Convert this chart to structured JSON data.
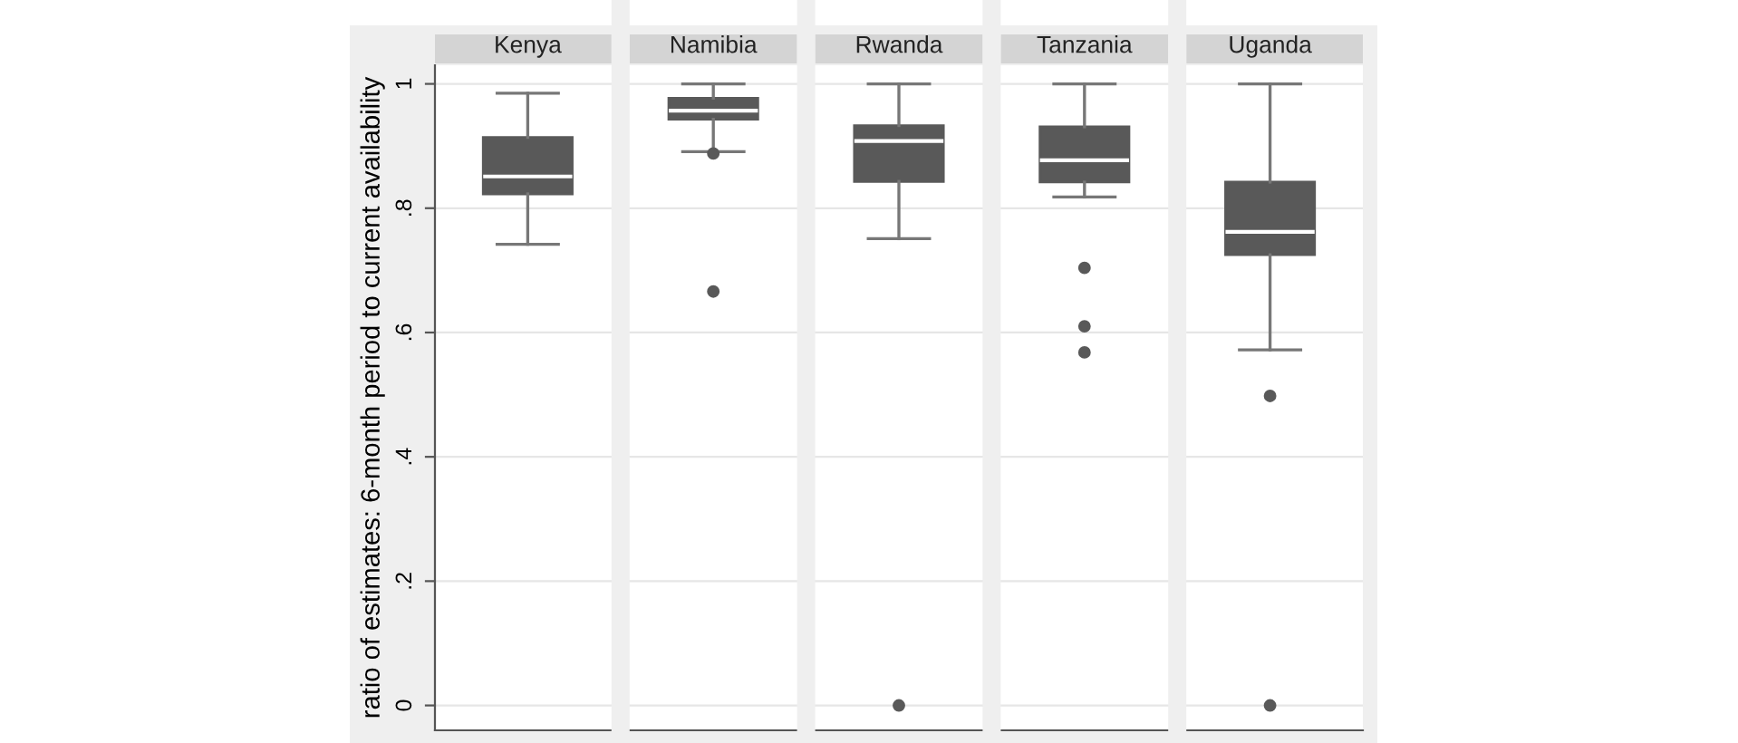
{
  "chart_data": {
    "type": "box",
    "ylabel": "ratio of estimates: 6-month period to current availability",
    "categories": [
      "Kenya",
      "Namibia",
      "Rwanda",
      "Tanzania",
      "Uganda"
    ],
    "color": "#595959",
    "ylim": [
      -0.04,
      1.03
    ],
    "yticks": [
      {
        "value": 0,
        "label": "0"
      },
      {
        "value": 0.2,
        "label": ".2"
      },
      {
        "value": 0.4,
        "label": ".4"
      },
      {
        "value": 0.6,
        "label": ".6"
      },
      {
        "value": 0.8,
        "label": ".8"
      },
      {
        "value": 1,
        "label": "1"
      }
    ],
    "grid": "y",
    "boxes": [
      {
        "low": 0.742,
        "q1": 0.823,
        "median": 0.851,
        "q3": 0.914,
        "high": 0.985
      },
      {
        "low": 0.891,
        "q1": 0.943,
        "median": 0.957,
        "q3": 0.977,
        "high": 1.0,
        "outliers": [
          0.888,
          0.666
        ]
      },
      {
        "low": 0.751,
        "q1": 0.843,
        "median": 0.908,
        "q3": 0.933,
        "high": 1.0,
        "outliers": [
          0.0
        ]
      },
      {
        "low": 0.818,
        "q1": 0.842,
        "median": 0.877,
        "q3": 0.931,
        "high": 1.0,
        "outliers": [
          0.704,
          0.61,
          0.568
        ]
      },
      {
        "low": 0.572,
        "q1": 0.725,
        "median": 0.762,
        "q3": 0.842,
        "high": 1.0,
        "outliers": [
          0.498,
          0.0
        ]
      }
    ]
  }
}
